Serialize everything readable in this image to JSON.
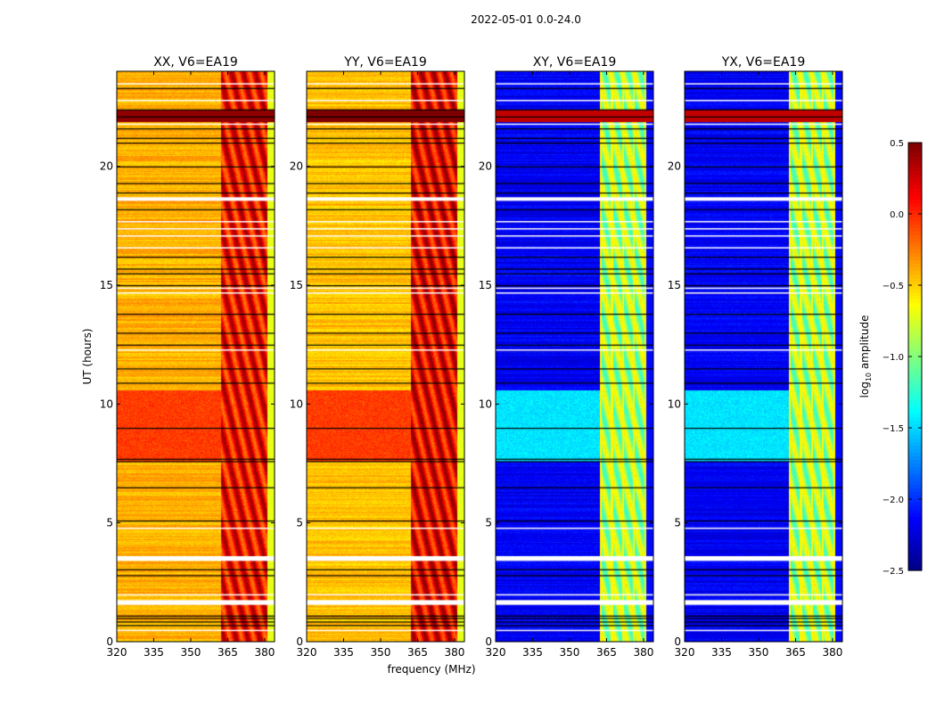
{
  "chart_data": {
    "type": "heatmap",
    "suptitle": "2022-05-01 0.0-24.0",
    "xlabel": "frequency (MHz)",
    "ylabel": "UT (hours)",
    "xlim": [
      320,
      384
    ],
    "ylim": [
      0,
      24
    ],
    "xticks": [
      320,
      335,
      350,
      365,
      380
    ],
    "yticks": [
      0,
      5,
      10,
      15,
      20
    ],
    "colorbar": {
      "label": "log10 amplitude",
      "label_main": "log",
      "label_sub": "10",
      "label_rest": " amplitude",
      "range": [
        -2.5,
        0.5
      ],
      "ticks": [
        "0.5",
        "0.0",
        "−0.5",
        "−1.0",
        "−1.5",
        "−2.0",
        "−2.5"
      ],
      "tick_values": [
        0.5,
        0,
        -0.5,
        -1,
        -1.5,
        -2,
        -2.5
      ],
      "colormap": "jet"
    },
    "flagged_hours": [
      [
        1.55,
        1.75
      ],
      [
        3.4,
        3.6
      ],
      [
        18.55,
        18.7
      ]
    ],
    "black_lines_hours": [
      0.7,
      0.85,
      1.0,
      1.1,
      2.8,
      3.05,
      5.1,
      6.5,
      7.6,
      7.7,
      9.0,
      10.9,
      11.5,
      12.5,
      13.0,
      13.8,
      15.0,
      15.5,
      15.7,
      16.2,
      18.2,
      18.9,
      19.3,
      20.0,
      21.0,
      21.2,
      21.6,
      22.1,
      22.4,
      23.3
    ],
    "white_lines_hours": [
      0.5,
      2.0,
      4.8,
      12.3,
      14.7,
      14.9,
      16.6,
      17.1,
      17.4,
      17.7,
      21.8,
      22.8,
      23.5
    ],
    "rfi_band_mhz": [
      362,
      381
    ],
    "panels": [
      {
        "title": "XX, V6=EA19",
        "base": -0.4,
        "band": 0.1,
        "high_hours": [
          7.6,
          10.6
        ],
        "high": -0.05,
        "bright_hours": [
          21.9,
          22.4
        ],
        "bright": 0.45
      },
      {
        "title": "YY, V6=EA19",
        "base": -0.45,
        "band": 0.15,
        "high_hours": [
          7.6,
          10.6
        ],
        "high": -0.05,
        "bright_hours": [
          21.9,
          22.4
        ],
        "bright": 0.5
      },
      {
        "title": "XY, V6=EA19",
        "base": -2.15,
        "band": -0.9,
        "high_hours": [
          7.6,
          10.6
        ],
        "high": -1.45,
        "bright_hours": [
          21.9,
          22.4
        ],
        "bright": 0.3
      },
      {
        "title": "YX, V6=EA19",
        "base": -2.15,
        "band": -0.9,
        "high_hours": [
          7.6,
          10.6
        ],
        "high": -1.45,
        "bright_hours": [
          21.9,
          22.4
        ],
        "bright": 0.3
      }
    ]
  }
}
